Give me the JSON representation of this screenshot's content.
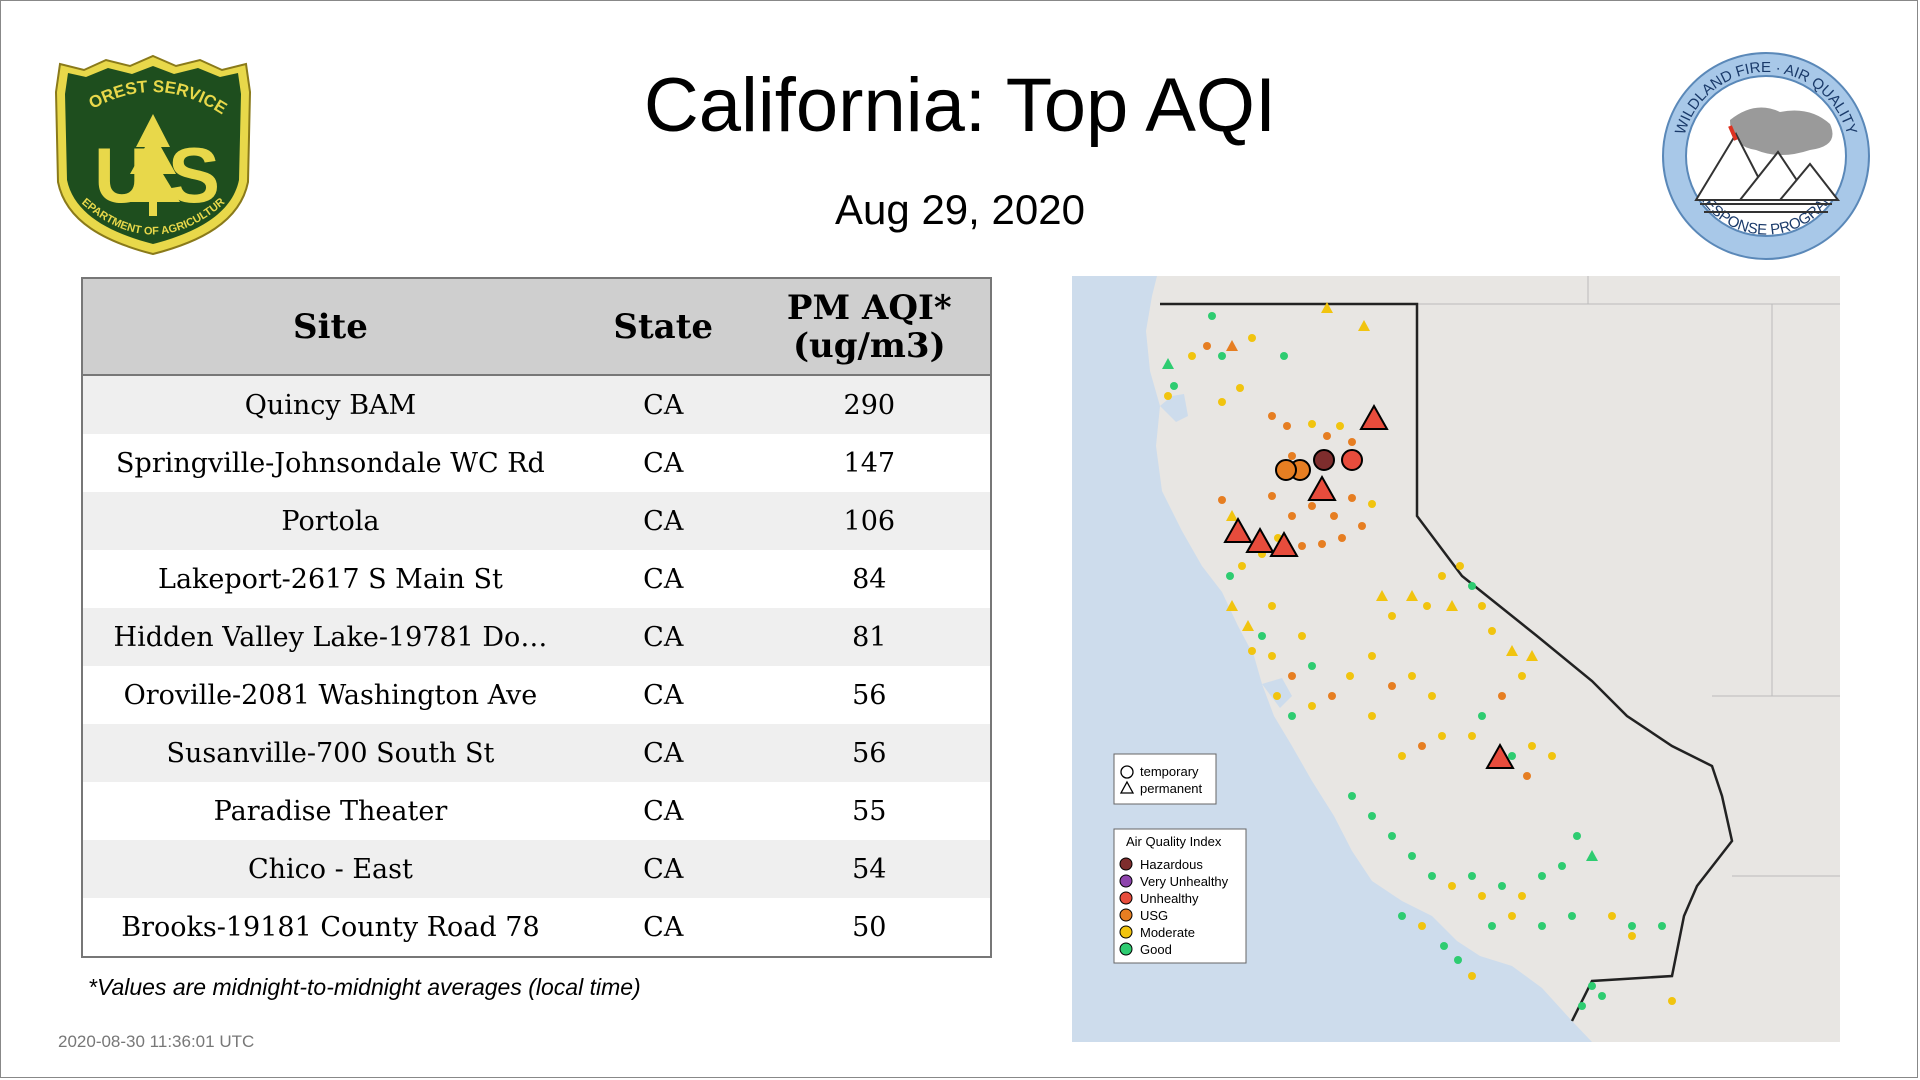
{
  "header": {
    "title": "California: Top AQI",
    "date": "Aug 29, 2020"
  },
  "logos": {
    "usfs": {
      "top_text": "FOREST SERVICE",
      "letter_left": "U",
      "letter_right": "S",
      "bottom_text": "DEPARTMENT OF AGRICULTURE"
    },
    "wfaq": {
      "top_text": "WILDLAND FIRE · AIR QUALITY",
      "bottom_text": "RESPONSE PROGRAM"
    }
  },
  "table": {
    "columns": [
      "Site",
      "State",
      "PM AQI*",
      "(ug/m3)"
    ],
    "rows": [
      {
        "site": "Quincy BAM",
        "state": "CA",
        "aqi": "290"
      },
      {
        "site": "Springville-Johnsondale WC Rd",
        "state": "CA",
        "aqi": "147"
      },
      {
        "site": "Portola",
        "state": "CA",
        "aqi": "106"
      },
      {
        "site": "Lakeport-2617 S Main St",
        "state": "CA",
        "aqi": "84"
      },
      {
        "site": "Hidden Valley Lake-19781 Do…",
        "state": "CA",
        "aqi": "81"
      },
      {
        "site": "Oroville-2081 Washington Ave",
        "state": "CA",
        "aqi": "56"
      },
      {
        "site": "Susanville-700 South St",
        "state": "CA",
        "aqi": "56"
      },
      {
        "site": "Paradise Theater",
        "state": "CA",
        "aqi": "55"
      },
      {
        "site": "Chico - East",
        "state": "CA",
        "aqi": "54"
      },
      {
        "site": "Brooks-19181 County Road 78",
        "state": "CA",
        "aqi": "50"
      }
    ]
  },
  "footnote": "*Values are midnight-to-midnight averages (local time)",
  "timestamp": "2020-08-30 11:36:01 UTC",
  "map": {
    "shape_legend": {
      "items": [
        {
          "shape": "circle",
          "label": "temporary"
        },
        {
          "shape": "triangle",
          "label": "permanent"
        }
      ]
    },
    "aqi_legend": {
      "title": "Air Quality Index",
      "items": [
        {
          "label": "Hazardous",
          "color": "#7e2d2d"
        },
        {
          "label": "Very Unhealthy",
          "color": "#8e44ad"
        },
        {
          "label": "Unhealthy",
          "color": "#e74c3c"
        },
        {
          "label": "USG",
          "color": "#e67e22"
        },
        {
          "label": "Moderate",
          "color": "#f1c40f"
        },
        {
          "label": "Good",
          "color": "#2ecc71"
        }
      ]
    }
  }
}
